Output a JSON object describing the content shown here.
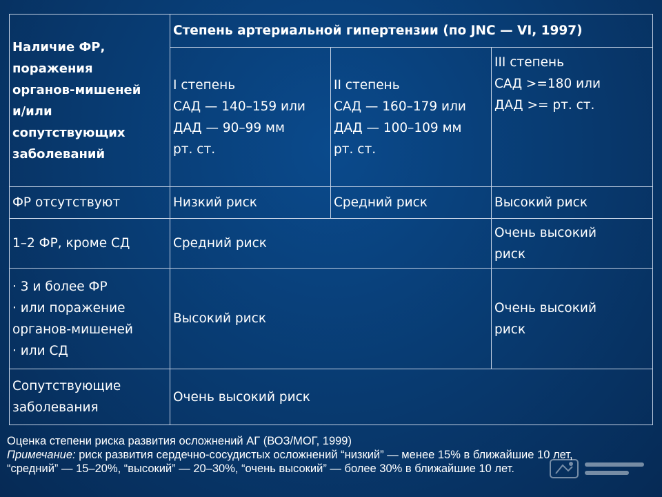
{
  "table": {
    "header_left": "Наличие ФР,\nпоражения\nорганов-мишеней\nи/или\nсопутствующих\nзаболеваний",
    "header_top": "Степень артериальной гипертензии (по JNC — VI, 1997)",
    "grades": [
      "I степень\nСАД — 140–159 или\nДАД — 90–99 мм\nрт. ст.",
      "II степень\nСАД — 160–179 или\nДАД — 100–109 мм\nрт. ст.",
      "III степень\nСАД >=180 или\nДАД >= рт. ст."
    ],
    "rows": [
      {
        "label": "ФР отсутствуют",
        "cells": [
          "Низкий риск",
          "Средний риск",
          "Высокий риск"
        ]
      },
      {
        "label": "1–2 ФР, кроме СД",
        "cells": [
          "Средний риск",
          "Очень высокий\nриск"
        ]
      },
      {
        "label": "· 3 и более ФР\n· или поражение\nорганов-мишеней\n· или СД",
        "cells": [
          "Высокий риск",
          "Очень высокий\nриск"
        ]
      },
      {
        "label": "Сопутствующие\nзаболевания",
        "cells": [
          "Очень высокий риск"
        ]
      }
    ]
  },
  "caption": {
    "line1": "Оценка степени риска развития осложнений АГ (ВОЗ/МОГ, 1999)",
    "note_label": "Примечание:",
    "line2_rest": " риск развития сердечно-сосудистых осложнений “низкий” — менее 15% в ближайшие 10 лет,",
    "line3": "“средний” — 15–20%, “высокий” — 20–30%, “очень высокий” — более 30% в ближайшие 10 лет."
  }
}
